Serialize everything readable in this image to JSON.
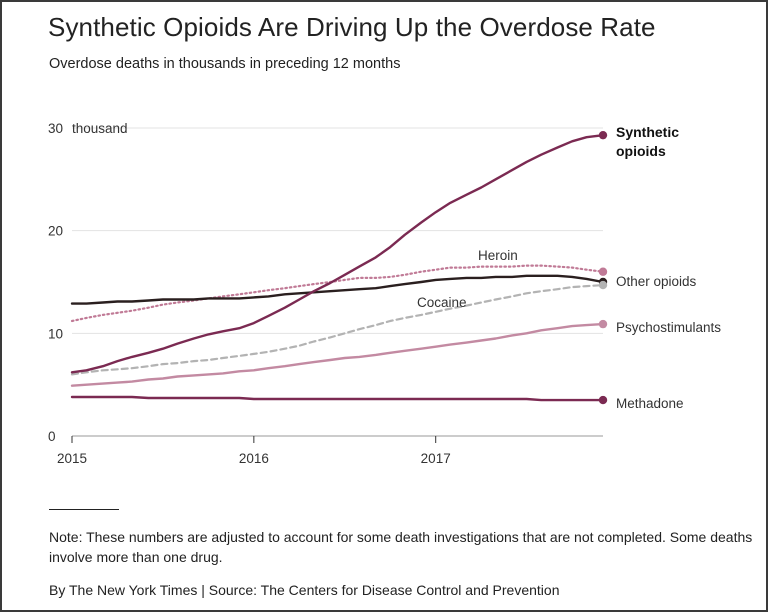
{
  "title": "Synthetic Opioids Are Driving Up the Overdose Rate",
  "subtitle": "Overdose deaths in thousands in preceding 12 months",
  "note": "Note: These numbers are adjusted to account for some death investigations that are not completed. Some deaths involve more than one drug.",
  "source": "By The New York Times | Source: The Centers for Disease Control and Prevention",
  "chart_data": {
    "type": "line",
    "y_unit_label": "thousand",
    "ylim": [
      0,
      30
    ],
    "y_ticks": [
      0,
      10,
      20,
      30
    ],
    "y_tick_labels": [
      "0",
      "10",
      "20",
      "30"
    ],
    "x_ticks": [
      2015,
      2016,
      2017
    ],
    "x_tick_labels": [
      "2015",
      "2016",
      "2017"
    ],
    "xlim": [
      2015,
      2017.92
    ],
    "grid": true,
    "x": [
      2015.0,
      2015.08,
      2015.17,
      2015.25,
      2015.33,
      2015.42,
      2015.5,
      2015.58,
      2015.67,
      2015.75,
      2015.83,
      2015.92,
      2016.0,
      2016.08,
      2016.17,
      2016.25,
      2016.33,
      2016.42,
      2016.5,
      2016.58,
      2016.67,
      2016.75,
      2016.83,
      2016.92,
      2017.0,
      2017.08,
      2017.17,
      2017.25,
      2017.33,
      2017.42,
      2017.5,
      2017.58,
      2017.67,
      2017.75,
      2017.83,
      2017.92
    ],
    "series": [
      {
        "name": "Synthetic opioids",
        "label_lines": [
          "Synthetic",
          "opioids"
        ],
        "color": "#7b2a52",
        "style": "solid",
        "bold": true,
        "values": [
          6.2,
          6.4,
          6.8,
          7.3,
          7.7,
          8.1,
          8.5,
          9.0,
          9.5,
          9.9,
          10.2,
          10.5,
          11.0,
          11.7,
          12.5,
          13.3,
          14.1,
          14.9,
          15.7,
          16.5,
          17.4,
          18.4,
          19.6,
          20.8,
          21.8,
          22.7,
          23.5,
          24.2,
          25.0,
          25.9,
          26.7,
          27.4,
          28.1,
          28.7,
          29.1,
          29.3
        ]
      },
      {
        "name": "Heroin",
        "label_lines": [
          "Heroin"
        ],
        "color": "#c07a96",
        "style": "dotted",
        "bold": false,
        "values": [
          11.2,
          11.5,
          11.8,
          12.0,
          12.2,
          12.5,
          12.8,
          13.0,
          13.2,
          13.4,
          13.6,
          13.8,
          14.0,
          14.2,
          14.4,
          14.6,
          14.8,
          15.0,
          15.2,
          15.4,
          15.4,
          15.5,
          15.7,
          16.0,
          16.2,
          16.4,
          16.4,
          16.5,
          16.5,
          16.5,
          16.6,
          16.6,
          16.5,
          16.4,
          16.2,
          16.0
        ]
      },
      {
        "name": "Other opioids",
        "label_lines": [
          "Other opioids"
        ],
        "color": "#2a1f1f",
        "style": "solid",
        "bold": false,
        "values": [
          12.9,
          12.9,
          13.0,
          13.1,
          13.1,
          13.2,
          13.3,
          13.3,
          13.3,
          13.4,
          13.4,
          13.4,
          13.5,
          13.6,
          13.8,
          13.9,
          14.0,
          14.1,
          14.2,
          14.3,
          14.4,
          14.6,
          14.8,
          15.0,
          15.2,
          15.3,
          15.4,
          15.4,
          15.5,
          15.5,
          15.6,
          15.6,
          15.6,
          15.5,
          15.3,
          15.0
        ]
      },
      {
        "name": "Cocaine",
        "label_lines": [
          "Cocaine"
        ],
        "color": "#b3b3b3",
        "style": "dashed",
        "bold": false,
        "values": [
          6.0,
          6.2,
          6.4,
          6.5,
          6.6,
          6.8,
          7.0,
          7.1,
          7.3,
          7.4,
          7.6,
          7.8,
          8.0,
          8.2,
          8.5,
          8.8,
          9.2,
          9.6,
          10.0,
          10.4,
          10.8,
          11.2,
          11.5,
          11.8,
          12.1,
          12.4,
          12.7,
          13.0,
          13.3,
          13.6,
          13.9,
          14.1,
          14.3,
          14.5,
          14.6,
          14.7
        ]
      },
      {
        "name": "Psychostimulants",
        "label_lines": [
          "Psychostimulants"
        ],
        "color": "#c38aa2",
        "style": "solid",
        "bold": false,
        "values": [
          4.9,
          5.0,
          5.1,
          5.2,
          5.3,
          5.5,
          5.6,
          5.8,
          5.9,
          6.0,
          6.1,
          6.3,
          6.4,
          6.6,
          6.8,
          7.0,
          7.2,
          7.4,
          7.6,
          7.7,
          7.9,
          8.1,
          8.3,
          8.5,
          8.7,
          8.9,
          9.1,
          9.3,
          9.5,
          9.8,
          10.0,
          10.3,
          10.5,
          10.7,
          10.8,
          10.9
        ]
      },
      {
        "name": "Methadone",
        "label_lines": [
          "Methadone"
        ],
        "color": "#7b2a52",
        "style": "solid",
        "bold": false,
        "values": [
          3.8,
          3.8,
          3.8,
          3.8,
          3.8,
          3.7,
          3.7,
          3.7,
          3.7,
          3.7,
          3.7,
          3.7,
          3.6,
          3.6,
          3.6,
          3.6,
          3.6,
          3.6,
          3.6,
          3.6,
          3.6,
          3.6,
          3.6,
          3.6,
          3.6,
          3.6,
          3.6,
          3.6,
          3.6,
          3.6,
          3.6,
          3.5,
          3.5,
          3.5,
          3.5,
          3.5
        ]
      }
    ]
  }
}
